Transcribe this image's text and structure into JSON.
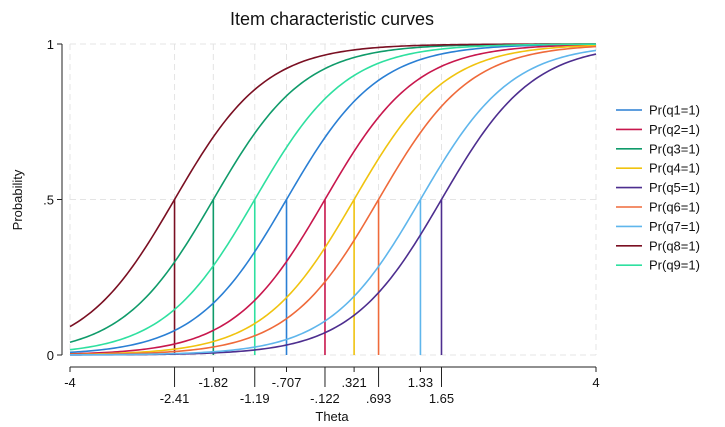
{
  "chart_data": {
    "type": "line",
    "title": "Item characteristic curves",
    "xlabel": "Theta",
    "ylabel": "Probability",
    "xlim": [
      -4,
      4
    ],
    "ylim": [
      0,
      1
    ],
    "y_ticks": [
      {
        "value": 0,
        "label": "0"
      },
      {
        "value": 0.5,
        "label": ".5"
      },
      {
        "value": 1,
        "label": "1"
      }
    ],
    "x_ticks": [
      {
        "value": -4,
        "label": "-4",
        "row": 1
      },
      {
        "value": -2.41,
        "label": "-2.41",
        "row": 2
      },
      {
        "value": -1.82,
        "label": "-1.82",
        "row": 1
      },
      {
        "value": -1.19,
        "label": "-1.19",
        "row": 2
      },
      {
        "value": -0.707,
        "label": "-.707",
        "row": 1
      },
      {
        "value": -0.122,
        "label": "-.122",
        "row": 2
      },
      {
        "value": 0.321,
        "label": ".321",
        "row": 1
      },
      {
        "value": 0.693,
        "label": ".693",
        "row": 2
      },
      {
        "value": 1.33,
        "label": "1.33",
        "row": 1
      },
      {
        "value": 1.65,
        "label": "1.65",
        "row": 2
      },
      {
        "value": 4,
        "label": "4",
        "row": 1
      }
    ],
    "grid": true,
    "legend_position": "right",
    "discrimination": 0.85,
    "series": [
      {
        "name": "Pr(q1=1)",
        "difficulty": -0.707,
        "color": "#2a7fd4"
      },
      {
        "name": "Pr(q2=1)",
        "difficulty": -0.122,
        "color": "#c8174d"
      },
      {
        "name": "Pr(q3=1)",
        "difficulty": -1.82,
        "color": "#0f9b6a"
      },
      {
        "name": "Pr(q4=1)",
        "difficulty": 0.321,
        "color": "#f0c30f"
      },
      {
        "name": "Pr(q5=1)",
        "difficulty": 1.65,
        "color": "#4d2e8f"
      },
      {
        "name": "Pr(q6=1)",
        "difficulty": 0.693,
        "color": "#ef6a3a"
      },
      {
        "name": "Pr(q7=1)",
        "difficulty": 1.33,
        "color": "#5fb6ec"
      },
      {
        "name": "Pr(q8=1)",
        "difficulty": -2.41,
        "color": "#7a0f22"
      },
      {
        "name": "Pr(q9=1)",
        "difficulty": -1.19,
        "color": "#2fe0a0"
      }
    ]
  }
}
